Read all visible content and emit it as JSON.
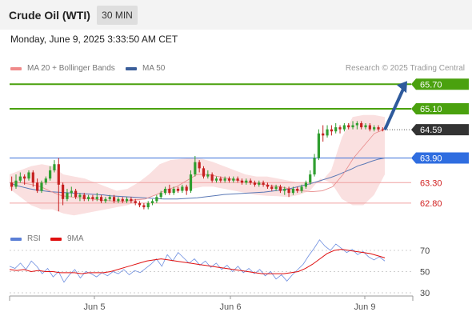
{
  "header": {
    "title": "Crude Oil (WTI)",
    "timeframe": "30 MIN"
  },
  "datetime": "Monday, June 9, 2025 3:33:50 AM CET",
  "legend": {
    "bb": {
      "label": "MA 20 + Bollinger Bands",
      "color": "#f08a8a"
    },
    "ma50": {
      "label": "MA 50",
      "color": "#3b5e9a"
    },
    "credit": "Research © 2025 Trading Central"
  },
  "rsi_legend": {
    "rsi": {
      "label": "RSI",
      "color": "#5b7fd6"
    },
    "ma9": {
      "label": "9MA",
      "color": "#e01010"
    }
  },
  "chart_data": [
    {
      "type": "candlestick",
      "ylim": [
        62.35,
        65.92
      ],
      "x_ticks": [
        "Jun 5",
        "Jun 6",
        "Jun 9"
      ],
      "candles": [
        [
          63.3,
          63.2,
          63.45,
          63.1
        ],
        [
          63.2,
          63.35,
          63.5,
          63.15
        ],
        [
          63.35,
          63.45,
          63.55,
          63.3
        ],
        [
          63.45,
          63.4,
          63.5,
          63.25
        ],
        [
          63.4,
          63.55,
          63.6,
          63.35
        ],
        [
          63.55,
          63.3,
          63.6,
          63.2
        ],
        [
          63.3,
          63.1,
          63.4,
          63.05
        ],
        [
          63.1,
          63.3,
          63.35,
          63.05
        ],
        [
          63.3,
          63.4,
          63.45,
          63.25
        ],
        [
          63.4,
          63.6,
          63.7,
          63.35
        ],
        [
          63.6,
          63.75,
          63.85,
          63.55
        ],
        [
          63.75,
          63.25,
          63.9,
          62.6
        ],
        [
          63.25,
          62.9,
          63.3,
          62.75
        ],
        [
          62.9,
          63.05,
          63.15,
          62.85
        ],
        [
          63.05,
          63.1,
          63.2,
          62.95
        ],
        [
          63.1,
          62.95,
          63.15,
          62.9
        ],
        [
          62.95,
          63.0,
          63.05,
          62.85
        ],
        [
          63.0,
          62.9,
          63.05,
          62.85
        ],
        [
          62.9,
          62.95,
          63.0,
          62.85
        ],
        [
          62.95,
          62.9,
          63.0,
          62.85
        ],
        [
          62.9,
          62.95,
          63.05,
          62.85
        ],
        [
          62.95,
          62.85,
          63.0,
          62.8
        ],
        [
          62.85,
          62.9,
          62.95,
          62.8
        ],
        [
          62.9,
          62.95,
          63.0,
          62.85
        ],
        [
          62.95,
          62.85,
          63.0,
          62.8
        ],
        [
          62.85,
          62.9,
          62.95,
          62.8
        ],
        [
          62.9,
          62.85,
          62.95,
          62.8
        ],
        [
          62.85,
          62.9,
          62.95,
          62.8
        ],
        [
          62.9,
          62.85,
          62.95,
          62.8
        ],
        [
          62.85,
          62.8,
          62.9,
          62.75
        ],
        [
          62.8,
          62.75,
          62.85,
          62.7
        ],
        [
          62.75,
          62.7,
          62.8,
          62.65
        ],
        [
          62.7,
          62.8,
          62.85,
          62.65
        ],
        [
          62.8,
          62.85,
          62.9,
          62.75
        ],
        [
          62.85,
          62.95,
          63.0,
          62.8
        ],
        [
          62.95,
          63.05,
          63.1,
          62.9
        ],
        [
          63.05,
          63.15,
          63.2,
          63.0
        ],
        [
          63.15,
          63.05,
          63.25,
          63.0
        ],
        [
          63.05,
          63.15,
          63.2,
          63.0
        ],
        [
          63.15,
          63.1,
          63.2,
          63.05
        ],
        [
          63.1,
          63.2,
          63.25,
          63.05
        ],
        [
          63.2,
          63.1,
          63.25,
          63.0
        ],
        [
          63.1,
          63.5,
          63.6,
          63.05
        ],
        [
          63.5,
          63.8,
          63.95,
          63.45
        ],
        [
          63.8,
          63.65,
          63.85,
          63.55
        ],
        [
          63.65,
          63.45,
          63.7,
          63.4
        ],
        [
          63.45,
          63.5,
          63.6,
          63.4
        ],
        [
          63.5,
          63.35,
          63.55,
          63.3
        ],
        [
          63.35,
          63.4,
          63.45,
          63.3
        ],
        [
          63.4,
          63.35,
          63.45,
          63.3
        ],
        [
          63.35,
          63.4,
          63.45,
          63.3
        ],
        [
          63.4,
          63.35,
          63.45,
          63.3
        ],
        [
          63.35,
          63.4,
          63.45,
          63.3
        ],
        [
          63.4,
          63.35,
          63.45,
          63.3
        ],
        [
          63.35,
          63.3,
          63.4,
          63.25
        ],
        [
          63.3,
          63.35,
          63.4,
          63.25
        ],
        [
          63.35,
          63.3,
          63.4,
          63.25
        ],
        [
          63.3,
          63.25,
          63.35,
          63.2
        ],
        [
          63.25,
          63.3,
          63.35,
          63.2
        ],
        [
          63.3,
          63.25,
          63.35,
          63.2
        ],
        [
          63.25,
          63.2,
          63.3,
          63.15
        ],
        [
          63.2,
          63.15,
          63.25,
          63.1
        ],
        [
          63.15,
          63.2,
          63.25,
          63.1
        ],
        [
          63.2,
          63.1,
          63.25,
          63.05
        ],
        [
          63.1,
          63.15,
          63.2,
          63.0
        ],
        [
          63.15,
          63.05,
          63.2,
          62.95
        ],
        [
          63.05,
          63.15,
          63.2,
          63.0
        ],
        [
          63.15,
          63.1,
          63.2,
          63.05
        ],
        [
          63.1,
          63.2,
          63.25,
          63.05
        ],
        [
          63.2,
          63.3,
          63.35,
          63.15
        ],
        [
          63.3,
          63.5,
          63.6,
          63.25
        ],
        [
          63.5,
          63.9,
          64.0,
          63.45
        ],
        [
          63.9,
          64.5,
          64.6,
          63.85
        ],
        [
          64.5,
          64.45,
          64.7,
          64.3
        ],
        [
          64.45,
          64.6,
          64.7,
          64.4
        ],
        [
          64.6,
          64.55,
          64.7,
          64.45
        ],
        [
          64.55,
          64.65,
          64.75,
          64.5
        ],
        [
          64.65,
          64.6,
          64.7,
          64.5
        ],
        [
          64.6,
          64.7,
          64.75,
          64.55
        ],
        [
          64.7,
          64.65,
          64.75,
          64.6
        ],
        [
          64.65,
          64.7,
          64.8,
          64.6
        ],
        [
          64.7,
          64.75,
          64.8,
          64.6
        ],
        [
          64.75,
          64.65,
          64.8,
          64.6
        ],
        [
          64.65,
          64.7,
          64.75,
          64.6
        ],
        [
          64.7,
          64.6,
          64.75,
          64.55
        ],
        [
          64.6,
          64.65,
          64.7,
          64.55
        ],
        [
          64.65,
          64.6,
          64.7,
          64.55
        ],
        [
          64.6,
          64.59,
          64.65,
          64.55
        ]
      ],
      "ma50_values": [
        63.3,
        63.23,
        63.19,
        63.15,
        63.12,
        63.1,
        63.08,
        63.07,
        63.06,
        63.05,
        63.04,
        63.03,
        63.02,
        63.01,
        63.0,
        62.98,
        62.97,
        62.96,
        62.95,
        62.94,
        62.93,
        62.92,
        62.91,
        62.9,
        62.9,
        62.9,
        62.91,
        62.92,
        62.93,
        62.95,
        62.97,
        62.99,
        63.01,
        63.02,
        63.03,
        63.04,
        63.05,
        63.06,
        63.07,
        63.09,
        63.11,
        63.13,
        63.16,
        63.2,
        63.24,
        63.28,
        63.33,
        63.38,
        63.43,
        63.49,
        63.56,
        63.63,
        63.71,
        63.76,
        63.82,
        63.87,
        63.9
      ],
      "ma20_values": [
        63.3,
        63.3,
        63.26,
        63.2,
        63.08,
        62.98,
        62.95,
        62.92,
        62.9,
        62.87,
        62.85,
        62.84,
        62.88,
        62.9,
        63.0,
        63.12,
        63.2,
        63.35,
        63.5,
        63.5,
        63.45,
        63.4,
        63.35,
        63.3,
        63.27,
        63.23,
        63.2,
        63.14,
        63.1,
        63.08,
        63.1,
        63.2,
        63.5,
        63.9,
        64.2,
        64.5,
        64.6
      ],
      "bollinger_upper": [
        63.5,
        63.6,
        63.7,
        63.75,
        63.7,
        63.5,
        63.45,
        63.4,
        63.3,
        63.2,
        63.1,
        63.15,
        63.3,
        63.5,
        63.75,
        63.85,
        63.88,
        63.9,
        63.88,
        63.8,
        63.7,
        63.6,
        63.5,
        63.45,
        63.45,
        63.4,
        63.35,
        63.3,
        63.28,
        63.3,
        63.6,
        64.4,
        64.9,
        64.95,
        64.95,
        64.9
      ],
      "bollinger_lower": [
        63.15,
        62.95,
        62.75,
        62.65,
        62.65,
        62.55,
        62.5,
        62.55,
        62.6,
        62.65,
        62.7,
        62.75,
        62.85,
        62.95,
        63.0,
        63.05,
        63.1,
        63.15,
        63.2,
        63.2,
        63.15,
        63.1,
        63.05,
        63.0,
        62.98,
        62.97,
        62.95,
        63.0,
        63.1,
        63.4,
        63.3,
        62.9,
        62.75,
        62.75,
        63.0,
        63.5
      ],
      "levels": [
        {
          "value": 65.7,
          "label": "65.70",
          "style": "solid-green"
        },
        {
          "value": 65.1,
          "label": "65.10",
          "style": "solid-green"
        },
        {
          "value": 64.59,
          "label": "64.59",
          "style": "last-price"
        },
        {
          "value": 63.9,
          "label": "63.90",
          "style": "solid-blue"
        },
        {
          "value": 63.3,
          "label": "63.30",
          "style": "solid-red"
        },
        {
          "value": 62.8,
          "label": "62.80",
          "style": "solid-red"
        }
      ],
      "forecast_arrow": {
        "from": 64.59,
        "to": 65.7
      },
      "colors": {
        "up": "#2f9e2f",
        "down": "#c62020",
        "support": "#3a6fd8",
        "resistance_target": "#4aa10e"
      }
    },
    {
      "type": "line",
      "ylim": [
        30,
        70
      ],
      "y_ticks": [
        70,
        50,
        30
      ],
      "series": [
        {
          "name": "RSI",
          "values": [
            55,
            53,
            58,
            52,
            60,
            55,
            48,
            53,
            45,
            50,
            40,
            47,
            52,
            44,
            50,
            48,
            45,
            49,
            46,
            50,
            48,
            52,
            47,
            51,
            49,
            53,
            57,
            62,
            55,
            66,
            60,
            68,
            63,
            58,
            62,
            56,
            60,
            54,
            58,
            52,
            56,
            50,
            55,
            49,
            53,
            48,
            52,
            46,
            50,
            43,
            47,
            41,
            47,
            52,
            57,
            65,
            72,
            80,
            74,
            70,
            76,
            72,
            68,
            71,
            66,
            69,
            64,
            61,
            64,
            60
          ]
        },
        {
          "name": "9MA",
          "values": [
            52,
            51,
            52,
            50,
            51,
            50,
            50,
            49,
            49,
            49,
            48,
            49,
            49,
            49,
            50,
            52,
            54,
            56,
            58,
            60,
            61,
            62,
            61,
            60,
            59,
            58,
            57,
            56,
            55,
            54,
            53,
            52,
            51,
            50,
            49,
            48,
            48,
            48,
            48,
            49,
            50,
            53,
            57,
            62,
            67,
            70,
            71,
            70,
            69,
            68,
            67,
            65,
            63
          ]
        }
      ]
    }
  ]
}
